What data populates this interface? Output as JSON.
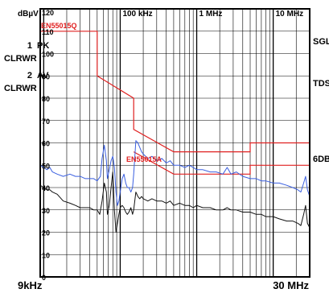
{
  "chart_data": {
    "type": "line",
    "title": "",
    "ylabel": "dBµV",
    "x_scale": "log",
    "xlim_hz": [
      9000,
      30000000
    ],
    "ylim": [
      0,
      120
    ],
    "grid": true,
    "yticks": [
      0,
      10,
      20,
      30,
      40,
      50,
      60,
      70,
      80,
      90,
      100,
      110,
      120
    ],
    "ytick_labels": [
      "0",
      "10",
      "20",
      "30",
      "40",
      "50",
      "60",
      "70",
      "80",
      "90",
      "100",
      "110",
      "120"
    ],
    "xtick_labels_top": [
      {
        "x_hz": 100000,
        "label": "100 kHz"
      },
      {
        "x_hz": 1000000,
        "label": "1 MHz"
      },
      {
        "x_hz": 10000000,
        "label": "10 MHz"
      }
    ],
    "x_start_label": "9kHz",
    "x_end_label": "30 MHz",
    "left_labels": {
      "trace1_number": "1",
      "trace1_det": "PK",
      "trace1_mode": "CLRWR",
      "trace2_number": "2",
      "trace2_det": "AV",
      "trace2_mode": "CLRWR"
    },
    "right_labels": {
      "r1": "SGL",
      "r2": "TDS",
      "r3": "6DB"
    },
    "limit_line_labels": {
      "qp": "EN55015Q",
      "av": "EN55015A"
    },
    "limit_lines": [
      {
        "name": "EN55015Q",
        "color": "#e02020",
        "points": [
          [
            9000,
            110
          ],
          [
            50000,
            110
          ],
          [
            50000,
            90
          ],
          [
            150000,
            80
          ],
          [
            150000,
            66
          ],
          [
            500000,
            56
          ],
          [
            5000000,
            56
          ],
          [
            5000000,
            60
          ],
          [
            30000000,
            60
          ]
        ]
      },
      {
        "name": "EN55015A",
        "color": "#e02020",
        "points": [
          [
            150000,
            56
          ],
          [
            500000,
            46
          ],
          [
            5000000,
            46
          ],
          [
            5000000,
            50
          ],
          [
            30000000,
            50
          ]
        ]
      }
    ],
    "series": [
      {
        "color": "#3a5fe0",
        "points": [
          [
            9000,
            50
          ],
          [
            10000,
            49
          ],
          [
            11000,
            48
          ],
          [
            12000,
            49
          ],
          [
            13000,
            47
          ],
          [
            15000,
            46
          ],
          [
            18000,
            45
          ],
          [
            22000,
            46
          ],
          [
            26000,
            45
          ],
          [
            30000,
            45
          ],
          [
            35000,
            44
          ],
          [
            40000,
            44
          ],
          [
            45000,
            44
          ],
          [
            50000,
            43
          ],
          [
            55000,
            45
          ],
          [
            58000,
            53
          ],
          [
            62000,
            59
          ],
          [
            66000,
            52
          ],
          [
            68000,
            44
          ],
          [
            72000,
            48
          ],
          [
            76000,
            52
          ],
          [
            80000,
            54
          ],
          [
            84000,
            49
          ],
          [
            88000,
            38
          ],
          [
            92000,
            32
          ],
          [
            96000,
            34
          ],
          [
            100000,
            38
          ],
          [
            106000,
            44
          ],
          [
            112000,
            46
          ],
          [
            118000,
            42
          ],
          [
            124000,
            40
          ],
          [
            130000,
            40
          ],
          [
            138000,
            38
          ],
          [
            145000,
            40
          ],
          [
            150000,
            46
          ],
          [
            160000,
            61
          ],
          [
            170000,
            60
          ],
          [
            180000,
            58
          ],
          [
            190000,
            56
          ],
          [
            200000,
            55
          ],
          [
            230000,
            53
          ],
          [
            260000,
            54
          ],
          [
            300000,
            52
          ],
          [
            350000,
            53
          ],
          [
            400000,
            51
          ],
          [
            450000,
            52
          ],
          [
            500000,
            50
          ],
          [
            600000,
            50
          ],
          [
            700000,
            49
          ],
          [
            800000,
            50
          ],
          [
            900000,
            49
          ],
          [
            1000000,
            48
          ],
          [
            1200000,
            48
          ],
          [
            1500000,
            47
          ],
          [
            1800000,
            47
          ],
          [
            2200000,
            46
          ],
          [
            2500000,
            49
          ],
          [
            2800000,
            46
          ],
          [
            3300000,
            47
          ],
          [
            4000000,
            45
          ],
          [
            5000000,
            44
          ],
          [
            6000000,
            44
          ],
          [
            7000000,
            43
          ],
          [
            8000000,
            43
          ],
          [
            10000000,
            42
          ],
          [
            12000000,
            42
          ],
          [
            15000000,
            41
          ],
          [
            18000000,
            40
          ],
          [
            21000000,
            39
          ],
          [
            23000000,
            38
          ],
          [
            25000000,
            42
          ],
          [
            26500000,
            45
          ],
          [
            28000000,
            39
          ],
          [
            30000000,
            36
          ]
        ]
      },
      {
        "color": "#111111",
        "points": [
          [
            9000,
            41
          ],
          [
            10000,
            40
          ],
          [
            11000,
            39
          ],
          [
            12000,
            39
          ],
          [
            13000,
            38
          ],
          [
            15000,
            37
          ],
          [
            18000,
            34
          ],
          [
            22000,
            33
          ],
          [
            26000,
            32
          ],
          [
            30000,
            31
          ],
          [
            35000,
            31
          ],
          [
            40000,
            31
          ],
          [
            45000,
            30
          ],
          [
            50000,
            30
          ],
          [
            54000,
            28
          ],
          [
            58000,
            34
          ],
          [
            62000,
            42
          ],
          [
            66000,
            38
          ],
          [
            68000,
            28
          ],
          [
            72000,
            32
          ],
          [
            76000,
            40
          ],
          [
            80000,
            47
          ],
          [
            84000,
            30
          ],
          [
            88000,
            20
          ],
          [
            92000,
            24
          ],
          [
            96000,
            28
          ],
          [
            100000,
            31
          ],
          [
            106000,
            32
          ],
          [
            112000,
            31
          ],
          [
            118000,
            29
          ],
          [
            124000,
            28
          ],
          [
            130000,
            29
          ],
          [
            138000,
            31
          ],
          [
            145000,
            28
          ],
          [
            150000,
            30
          ],
          [
            160000,
            38
          ],
          [
            170000,
            36
          ],
          [
            180000,
            35
          ],
          [
            190000,
            36
          ],
          [
            200000,
            35
          ],
          [
            230000,
            34
          ],
          [
            260000,
            35
          ],
          [
            300000,
            34
          ],
          [
            350000,
            34
          ],
          [
            400000,
            33
          ],
          [
            450000,
            34
          ],
          [
            500000,
            32
          ],
          [
            600000,
            33
          ],
          [
            700000,
            32
          ],
          [
            800000,
            32
          ],
          [
            900000,
            31
          ],
          [
            1000000,
            32
          ],
          [
            1200000,
            31
          ],
          [
            1500000,
            31
          ],
          [
            1800000,
            30
          ],
          [
            2200000,
            30
          ],
          [
            2500000,
            31
          ],
          [
            2800000,
            30
          ],
          [
            3300000,
            30
          ],
          [
            4000000,
            29
          ],
          [
            5000000,
            29
          ],
          [
            6000000,
            28
          ],
          [
            7000000,
            28
          ],
          [
            8000000,
            27
          ],
          [
            10000000,
            27
          ],
          [
            12000000,
            26
          ],
          [
            15000000,
            25
          ],
          [
            18000000,
            25
          ],
          [
            21000000,
            24
          ],
          [
            23000000,
            23
          ],
          [
            25000000,
            28
          ],
          [
            26500000,
            32
          ],
          [
            28000000,
            24
          ],
          [
            30000000,
            22
          ]
        ]
      }
    ]
  }
}
